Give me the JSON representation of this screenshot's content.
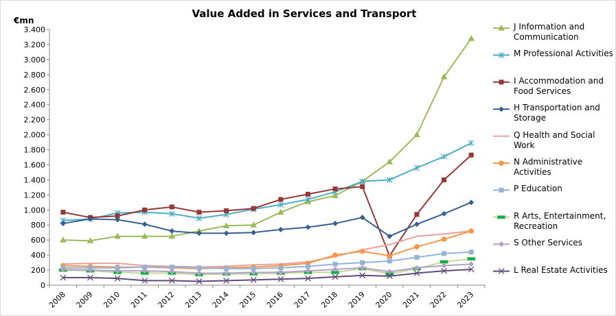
{
  "chart_data": {
    "type": "line",
    "title": "Value Added in Services and Transport",
    "ylabel": "€mn",
    "categories": [
      "2008",
      "2009",
      "2010",
      "2011",
      "2012",
      "2013",
      "2014",
      "2015",
      "2016",
      "2017",
      "2018",
      "2019",
      "2020",
      "2021",
      "2022",
      "2023"
    ],
    "ylim": [
      0,
      3400
    ],
    "yticks": [
      0,
      200,
      400,
      600,
      800,
      {
        "value": 1000,
        "label": "1.000"
      },
      {
        "value": 1200,
        "label": "1.200"
      },
      {
        "value": 1400,
        "label": "1.400"
      },
      {
        "value": 1600,
        "label": "1.600"
      },
      {
        "value": 1800,
        "label": "1.800"
      },
      {
        "value": 2000,
        "label": "2.000"
      },
      {
        "value": 2200,
        "label": "2.200"
      },
      {
        "value": 2400,
        "label": "2.400"
      },
      {
        "value": 2600,
        "label": "2.600"
      },
      {
        "value": 2800,
        "label": "2.800"
      },
      {
        "value": 3000,
        "label": "3.000"
      },
      {
        "value": 3200,
        "label": "3.200"
      },
      {
        "value": 3400,
        "label": "3.400"
      }
    ],
    "grid": false,
    "legend": "right",
    "series": [
      {
        "name": "J Information and Communication",
        "color": "#9bbb59",
        "marker": "triangle",
        "values": [
          600,
          590,
          650,
          650,
          650,
          720,
          790,
          800,
          970,
          1110,
          1190,
          1380,
          1640,
          2000,
          2770,
          3280
        ]
      },
      {
        "name": "M Professional Activities",
        "color": "#4bacc6",
        "marker": "asterisk",
        "values": [
          860,
          880,
          960,
          970,
          950,
          890,
          940,
          1010,
          1070,
          1140,
          1240,
          1380,
          1400,
          1560,
          1710,
          1890
        ]
      },
      {
        "name": "I Accommodation and Food Services",
        "color": "#953735",
        "marker": "square",
        "values": [
          970,
          900,
          920,
          1000,
          1040,
          970,
          990,
          1020,
          1140,
          1210,
          1280,
          1310,
          390,
          940,
          1400,
          1730
        ]
      },
      {
        "name": "H Transportation and Storage",
        "color": "#376092",
        "marker": "diamond",
        "values": [
          820,
          880,
          870,
          810,
          720,
          690,
          690,
          700,
          740,
          770,
          820,
          900,
          650,
          810,
          950,
          1100
        ]
      },
      {
        "name": "Q Health and Social Work",
        "color": "#e6a19c",
        "marker": "none",
        "values": [
          280,
          290,
          290,
          260,
          250,
          240,
          250,
          270,
          280,
          310,
          380,
          470,
          540,
          650,
          680,
          720
        ]
      },
      {
        "name": "N Administrative Activities",
        "color": "#f79646",
        "marker": "circle",
        "values": [
          260,
          250,
          240,
          240,
          230,
          220,
          230,
          240,
          260,
          290,
          400,
          450,
          390,
          510,
          610,
          720
        ]
      },
      {
        "name": "P Education",
        "color": "#95b3d7",
        "marker": "square",
        "values": [
          230,
          230,
          230,
          240,
          240,
          230,
          220,
          220,
          230,
          250,
          280,
          300,
          320,
          370,
          420,
          440
        ]
      },
      {
        "name": "R Arts, Entertainment, Recreation",
        "color": "#c3d69b",
        "marker": "dash",
        "values": [
          200,
          190,
          170,
          160,
          160,
          140,
          150,
          150,
          160,
          170,
          170,
          220,
          150,
          220,
          310,
          350
        ]
      },
      {
        "name": "S Other Services",
        "color": "#b2a1c7",
        "marker": "diamond",
        "values": [
          210,
          200,
          190,
          190,
          180,
          160,
          160,
          170,
          170,
          190,
          210,
          230,
          180,
          230,
          260,
          280
        ]
      },
      {
        "name": "L Real Estate Activities",
        "color": "#604a7b",
        "marker": "x",
        "values": [
          100,
          100,
          90,
          60,
          60,
          50,
          60,
          70,
          80,
          90,
          110,
          130,
          120,
          160,
          190,
          210
        ]
      }
    ]
  }
}
